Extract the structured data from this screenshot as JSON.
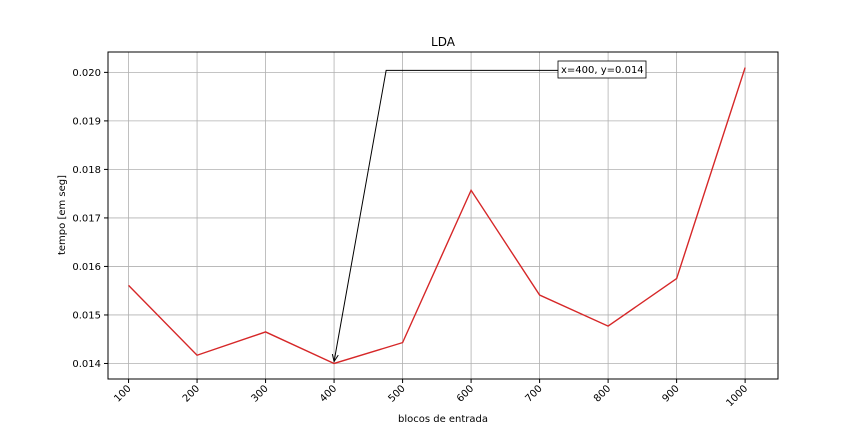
{
  "chart_data": {
    "type": "line",
    "title": "LDA",
    "xlabel": "blocos de entrada",
    "ylabel": "tempo [em seg]",
    "x": [
      100,
      200,
      300,
      400,
      500,
      600,
      700,
      800,
      900,
      1000
    ],
    "x_tick_labels": [
      "100",
      "200",
      "300",
      "400",
      "500",
      "600",
      "700",
      "800",
      "900",
      "1000"
    ],
    "series": [
      {
        "values": [
          0.01561,
          0.01417,
          0.01465,
          0.014,
          0.01443,
          0.01757,
          0.01541,
          0.01477,
          0.01575,
          0.0201
        ],
        "color": "#d62728"
      }
    ],
    "ylim": [
      0.01368,
      0.02042
    ],
    "y_ticks": [
      0.014,
      0.015,
      0.016,
      0.017,
      0.018,
      0.019,
      0.02
    ],
    "y_tick_labels": [
      "0.014",
      "0.015",
      "0.016",
      "0.017",
      "0.018",
      "0.019",
      "0.020"
    ],
    "grid": true,
    "annotation": {
      "text": "x=400, y=0.014",
      "point_x": 400,
      "point_y": 0.014,
      "text_anchor_x": 476,
      "text_anchor_y": 0.02004
    }
  }
}
